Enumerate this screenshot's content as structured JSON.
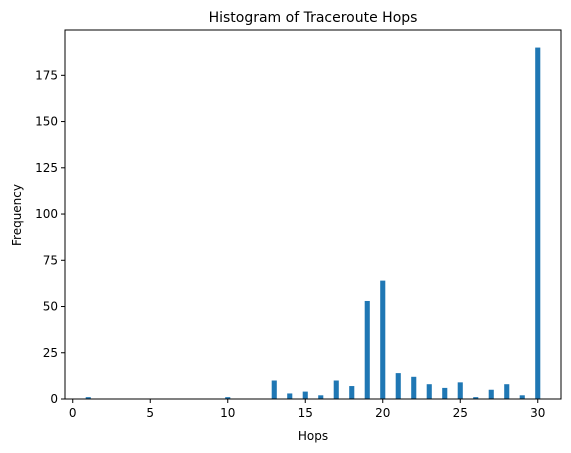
{
  "chart_data": {
    "type": "bar",
    "title": "Histogram of Traceroute Hops",
    "xlabel": "Hops",
    "ylabel": "Frequency",
    "xlim": [
      -0.5,
      31.5
    ],
    "ylim": [
      0,
      199.5
    ],
    "x_ticks": [
      0,
      5,
      10,
      15,
      20,
      25,
      30
    ],
    "y_ticks": [
      0,
      25,
      50,
      75,
      100,
      125,
      150,
      175
    ],
    "bar_color": "#1f77b4",
    "grid": false,
    "bars": [
      {
        "x": 1,
        "value": 1
      },
      {
        "x": 10,
        "value": 1
      },
      {
        "x": 13,
        "value": 10
      },
      {
        "x": 14,
        "value": 3
      },
      {
        "x": 15,
        "value": 4
      },
      {
        "x": 16,
        "value": 2
      },
      {
        "x": 17,
        "value": 10
      },
      {
        "x": 18,
        "value": 7
      },
      {
        "x": 19,
        "value": 53
      },
      {
        "x": 20,
        "value": 64
      },
      {
        "x": 21,
        "value": 14
      },
      {
        "x": 22,
        "value": 12
      },
      {
        "x": 23,
        "value": 8
      },
      {
        "x": 24,
        "value": 6
      },
      {
        "x": 25,
        "value": 9
      },
      {
        "x": 26,
        "value": 1
      },
      {
        "x": 27,
        "value": 5
      },
      {
        "x": 28,
        "value": 8
      },
      {
        "x": 29,
        "value": 2
      },
      {
        "x": 30,
        "value": 190
      }
    ]
  }
}
